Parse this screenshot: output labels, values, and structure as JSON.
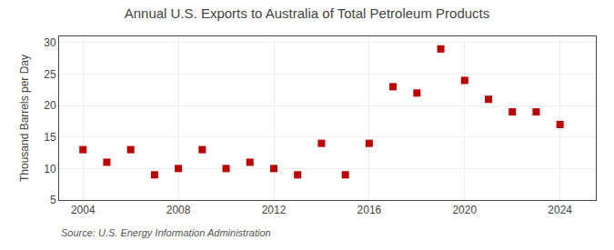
{
  "chart_data": {
    "type": "scatter",
    "title": "Annual U.S. Exports to Australia of Total Petroleum Products",
    "ylabel": "Thousand Barrels per Day",
    "annotations": [
      "Source: U.S. Energy Information Administration"
    ],
    "x": [
      2004,
      2005,
      2006,
      2007,
      2008,
      2009,
      2010,
      2011,
      2012,
      2013,
      2014,
      2015,
      2016,
      2017,
      2018,
      2019,
      2020,
      2021,
      2022,
      2023,
      2024
    ],
    "values": [
      13,
      11,
      13,
      9,
      10,
      13,
      10,
      11,
      10,
      9,
      14,
      9,
      14,
      23,
      22,
      29,
      24,
      21,
      19,
      19,
      17
    ],
    "color": "#bb0000",
    "marker": "square",
    "xlim": [
      2003.0,
      2025.5
    ],
    "xticks": [
      2004,
      2008,
      2012,
      2016,
      2020,
      2024
    ],
    "ylim": [
      5,
      31
    ],
    "yticks": [
      5,
      10,
      15,
      20,
      25,
      30
    ],
    "grid": true
  }
}
